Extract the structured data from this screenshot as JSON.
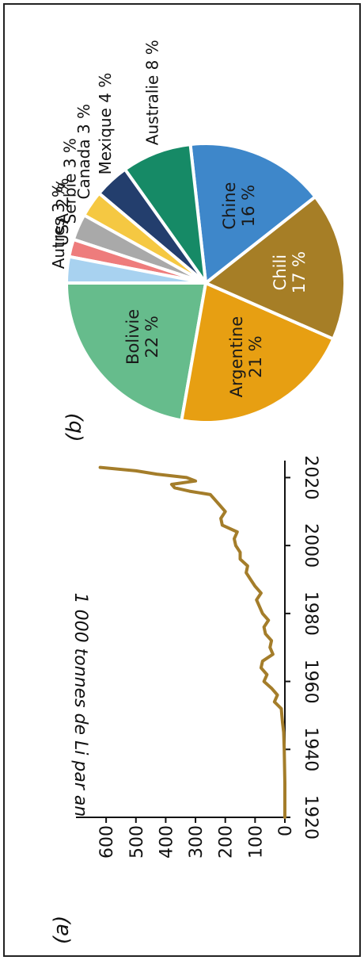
{
  "panel_labels": {
    "a": "(a)",
    "b": "(b)"
  },
  "chart_data": [
    {
      "type": "line",
      "panel": "(a)",
      "title": "",
      "xlabel": "",
      "ylabel": "1 000 tonnes de Li par an",
      "xlim": [
        1920,
        2025
      ],
      "ylim": [
        0,
        680
      ],
      "xticks": [
        1920,
        1940,
        1960,
        1980,
        2000,
        2020
      ],
      "yticks": [
        0,
        100,
        200,
        300,
        400,
        500,
        600
      ],
      "grid": false,
      "line_color": "#A47D2A",
      "series": [
        {
          "x": [
            1920,
            1925,
            1930,
            1935,
            1940,
            1945,
            1948,
            1950,
            1952,
            1954,
            1956,
            1958,
            1960,
            1962,
            1964,
            1966,
            1968,
            1970,
            1972,
            1974,
            1976,
            1978,
            1980,
            1982,
            1984,
            1986,
            1988,
            1990,
            1992,
            1994,
            1996,
            1998,
            2000,
            2002,
            2004,
            2006,
            2008,
            2010,
            2012,
            2014,
            2015,
            2016,
            2017,
            2018,
            2019,
            2020,
            2021,
            2022,
            2023
          ],
          "y": [
            0,
            0,
            0,
            1,
            2,
            4,
            8,
            10,
            12,
            35,
            25,
            45,
            70,
            60,
            80,
            75,
            40,
            50,
            45,
            65,
            70,
            55,
            75,
            85,
            95,
            80,
            100,
            115,
            130,
            125,
            150,
            150,
            165,
            170,
            160,
            210,
            215,
            200,
            220,
            240,
            250,
            320,
            370,
            380,
            300,
            330,
            430,
            500,
            620
          ]
        }
      ]
    },
    {
      "type": "pie",
      "panel": "(b)",
      "title": "",
      "slices": [
        {
          "label": "Bolivie",
          "pct_text": "22 %",
          "value": 22,
          "color": "#66BC8C",
          "text_color": "#1a1a1a"
        },
        {
          "label": "Argentine",
          "pct_text": "21 %",
          "value": 21,
          "color": "#E79F12",
          "text_color": "#1a1a1a"
        },
        {
          "label": "Chili",
          "pct_text": "17 %",
          "value": 17,
          "color": "#A67E26",
          "text_color": "#ffffff"
        },
        {
          "label": "Chine",
          "pct_text": "16 %",
          "value": 16,
          "color": "#3E87CA",
          "text_color": "#1a1a1a"
        },
        {
          "label": "Australie",
          "pct_text": "8 %",
          "value": 8,
          "color": "#168A66",
          "text_color": "#1a1a1a"
        },
        {
          "label": "Mexique",
          "pct_text": "4 %",
          "value": 4,
          "color": "#233E6D",
          "text_color": "#1a1a1a"
        },
        {
          "label": "Canada",
          "pct_text": "3 %",
          "value": 3,
          "color": "#F5C842",
          "text_color": "#1a1a1a"
        },
        {
          "label": "Serbie",
          "pct_text": "3 %",
          "value": 3,
          "color": "#A9A9A9",
          "text_color": "#1a1a1a"
        },
        {
          "label": "USA",
          "pct_text": "2 %",
          "value": 2,
          "color": "#EE7C7C",
          "text_color": "#1a1a1a"
        },
        {
          "label": "Autres",
          "pct_text": "3 %",
          "value": 3,
          "color": "#A8D2F0",
          "text_color": "#1a1a1a"
        }
      ]
    }
  ]
}
